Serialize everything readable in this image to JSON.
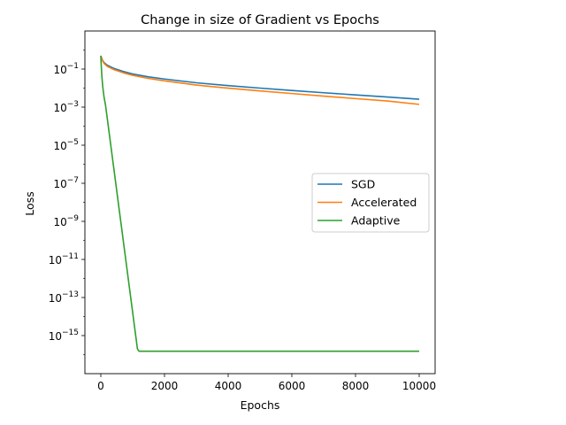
{
  "chart_data": {
    "type": "line",
    "title": "Change in size of Gradient vs Epochs",
    "xlabel": "Epochs",
    "ylabel": "Loss",
    "xlim": [
      -500,
      10500
    ],
    "ylim": [
      1e-17,
      10
    ],
    "yscale": "log",
    "grid": false,
    "legend_position": "center-right",
    "x_ticks": [
      {
        "value": 0,
        "label": "0"
      },
      {
        "value": 2000,
        "label": "2000"
      },
      {
        "value": 4000,
        "label": "4000"
      },
      {
        "value": 6000,
        "label": "6000"
      },
      {
        "value": 8000,
        "label": "8000"
      },
      {
        "value": 10000,
        "label": "10000"
      }
    ],
    "y_ticks": [
      {
        "exp": -15,
        "base": "10",
        "sup": "−15"
      },
      {
        "exp": -13,
        "base": "10",
        "sup": "−13"
      },
      {
        "exp": -11,
        "base": "10",
        "sup": "−11"
      },
      {
        "exp": -9,
        "base": "10",
        "sup": "−9"
      },
      {
        "exp": -7,
        "base": "10",
        "sup": "−7"
      },
      {
        "exp": -5,
        "base": "10",
        "sup": "−5"
      },
      {
        "exp": -3,
        "base": "10",
        "sup": "−3"
      },
      {
        "exp": -1,
        "base": "10",
        "sup": "−1"
      }
    ],
    "series": [
      {
        "name": "SGD",
        "color": "#1f77b4",
        "x": [
          0,
          50,
          100,
          200,
          400,
          700,
          1000,
          1500,
          2000,
          3000,
          4000,
          5000,
          6000,
          7000,
          8000,
          9000,
          10000
        ],
        "y": [
          0.5,
          0.3,
          0.22,
          0.16,
          0.11,
          0.075,
          0.055,
          0.039,
          0.03,
          0.019,
          0.0135,
          0.01,
          0.0075,
          0.0057,
          0.0044,
          0.0034,
          0.0026
        ]
      },
      {
        "name": "Accelerated",
        "color": "#ff7f0e",
        "x": [
          0,
          50,
          100,
          200,
          400,
          700,
          1000,
          1500,
          2000,
          3000,
          4000,
          5000,
          6000,
          7000,
          8000,
          9000,
          10000
        ],
        "y": [
          0.5,
          0.28,
          0.2,
          0.14,
          0.095,
          0.064,
          0.047,
          0.032,
          0.024,
          0.0145,
          0.0099,
          0.0071,
          0.0052,
          0.0038,
          0.0028,
          0.0021,
          0.0014
        ]
      },
      {
        "name": "Adaptive",
        "color": "#2ca02c",
        "x": [
          0,
          10,
          30,
          60,
          100,
          150,
          1150,
          1200,
          10000
        ],
        "y": [
          0.5,
          0.2,
          0.05,
          0.012,
          0.0035,
          0.0012,
          2e-16,
          1.5e-16,
          1.5e-16
        ]
      }
    ]
  }
}
